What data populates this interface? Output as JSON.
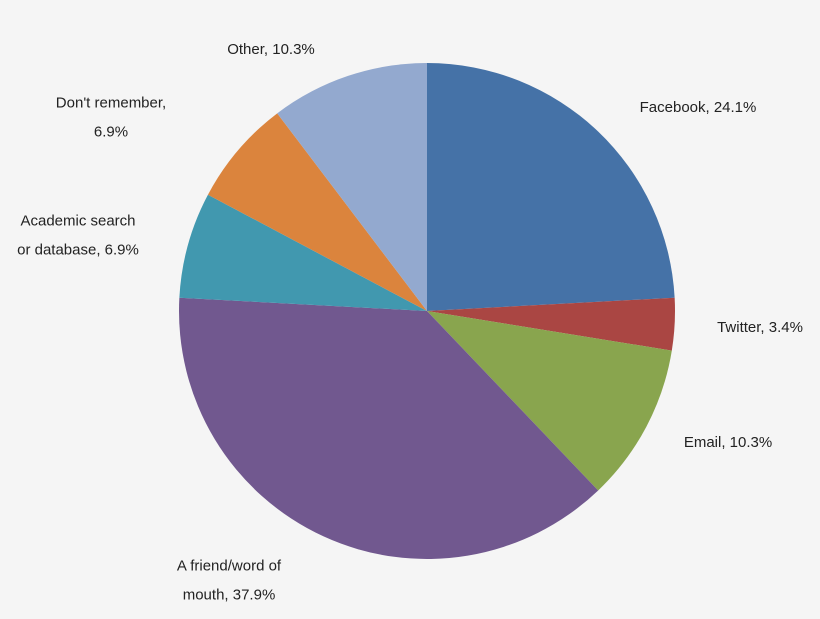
{
  "chart_data": {
    "type": "pie",
    "values": [
      24.1,
      3.4,
      10.3,
      37.9,
      6.9,
      6.9,
      10.3
    ],
    "value_labels": [
      "Facebook, 24.1%",
      "Twitter, 3.4%",
      "Email, 10.3%",
      "A friend/word of\nmouth, 37.9%",
      "Academic search\nor database, 6.9%",
      "Don't remember,\n6.9%",
      "Other, 10.3%"
    ],
    "colors": [
      "#4572a7",
      "#aa4643",
      "#89a54e",
      "#71588f",
      "#4198af",
      "#db843d",
      "#93a9cf"
    ]
  }
}
